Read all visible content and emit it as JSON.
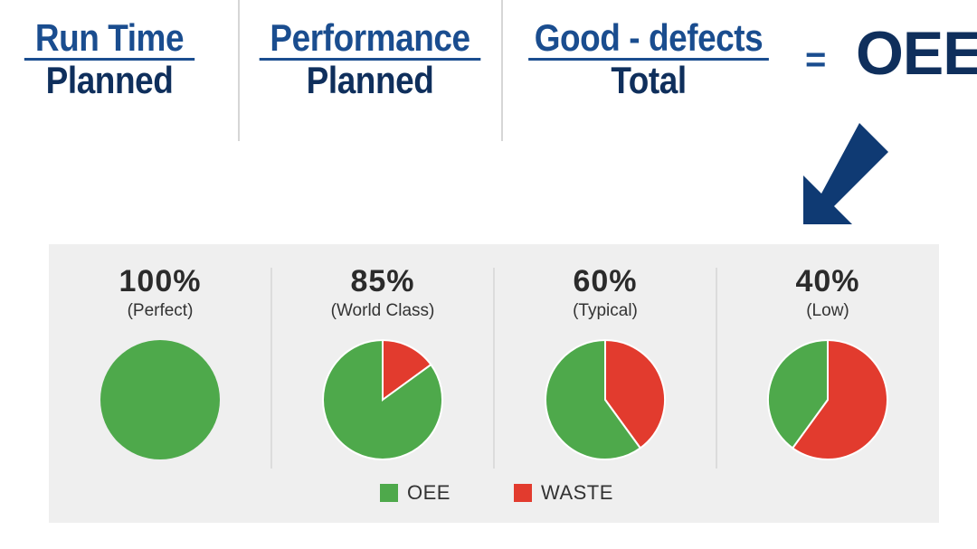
{
  "formula": {
    "terms": [
      {
        "numerator": "Run Time",
        "denominator": "Planned"
      },
      {
        "numerator": "Performance",
        "denominator": "Planned"
      },
      {
        "numerator": "Good - defects",
        "denominator": "Total"
      }
    ],
    "equals": "=",
    "result": "OEE"
  },
  "colors": {
    "oee": "#4ea94b",
    "waste": "#e23b2e",
    "navy": "#0f3a73"
  },
  "chart_data": {
    "type": "pie",
    "charts": [
      {
        "label": "100%",
        "sublabel": "(Perfect)",
        "slices": [
          {
            "name": "OEE",
            "value": 100
          },
          {
            "name": "WASTE",
            "value": 0
          }
        ]
      },
      {
        "label": "85%",
        "sublabel": "(World Class)",
        "slices": [
          {
            "name": "OEE",
            "value": 85
          },
          {
            "name": "WASTE",
            "value": 15
          }
        ]
      },
      {
        "label": "60%",
        "sublabel": "(Typical)",
        "slices": [
          {
            "name": "OEE",
            "value": 60
          },
          {
            "name": "WASTE",
            "value": 40
          }
        ]
      },
      {
        "label": "40%",
        "sublabel": "(Low)",
        "slices": [
          {
            "name": "OEE",
            "value": 40
          },
          {
            "name": "WASTE",
            "value": 60
          }
        ]
      }
    ],
    "legend": [
      "OEE",
      "WASTE"
    ],
    "legend_position": "bottom"
  }
}
